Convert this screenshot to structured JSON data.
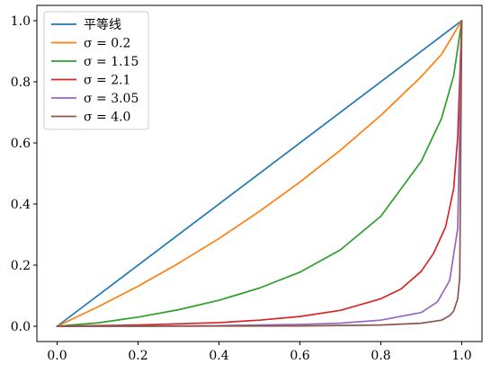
{
  "chart_data": {
    "type": "line",
    "title": "",
    "xlabel": "",
    "ylabel": "",
    "xlim": [
      -0.05,
      1.05
    ],
    "ylim": [
      -0.05,
      1.05
    ],
    "xticks": [
      "0.0",
      "0.2",
      "0.4",
      "0.6",
      "0.8",
      "1.0"
    ],
    "yticks": [
      "0.0",
      "0.2",
      "0.4",
      "0.6",
      "0.8",
      "1.0"
    ],
    "grid": false,
    "legend_position": "top-left",
    "series": [
      {
        "name": "平等线",
        "color": "#1f77b4",
        "x": [
          0,
          1
        ],
        "y": [
          0,
          1
        ]
      },
      {
        "name": "σ = 0.2",
        "color": "#ff7f0e",
        "x": [
          0,
          0.1,
          0.2,
          0.3,
          0.4,
          0.5,
          0.6,
          0.7,
          0.8,
          0.9,
          0.95,
          1.0
        ],
        "y": [
          0,
          0.063,
          0.131,
          0.206,
          0.287,
          0.376,
          0.472,
          0.576,
          0.69,
          0.817,
          0.89,
          1.0
        ]
      },
      {
        "name": "σ = 1.15",
        "color": "#2ca02c",
        "x": [
          0,
          0.1,
          0.2,
          0.3,
          0.4,
          0.5,
          0.6,
          0.7,
          0.8,
          0.9,
          0.95,
          0.98,
          1.0
        ],
        "y": [
          0,
          0.011,
          0.03,
          0.054,
          0.085,
          0.125,
          0.177,
          0.25,
          0.36,
          0.54,
          0.68,
          0.82,
          1.0
        ]
      },
      {
        "name": "σ = 2.1",
        "color": "#d62728",
        "x": [
          0,
          0.2,
          0.4,
          0.5,
          0.6,
          0.7,
          0.8,
          0.85,
          0.9,
          0.93,
          0.96,
          0.98,
          0.99,
          1.0
        ],
        "y": [
          0,
          0.004,
          0.012,
          0.02,
          0.032,
          0.052,
          0.09,
          0.122,
          0.18,
          0.238,
          0.325,
          0.45,
          0.62,
          1.0
        ]
      },
      {
        "name": "σ = 3.05",
        "color": "#9467bd",
        "x": [
          0,
          0.2,
          0.4,
          0.6,
          0.7,
          0.8,
          0.9,
          0.94,
          0.97,
          0.99,
          1.0
        ],
        "y": [
          0,
          0.0005,
          0.002,
          0.006,
          0.01,
          0.02,
          0.045,
          0.08,
          0.15,
          0.32,
          1.0
        ]
      },
      {
        "name": "σ = 4.0",
        "color": "#8c564b",
        "x": [
          0,
          0.2,
          0.4,
          0.6,
          0.8,
          0.9,
          0.95,
          0.97,
          0.98,
          0.99,
          0.995,
          1.0
        ],
        "y": [
          0,
          0.0001,
          0.0005,
          0.001,
          0.004,
          0.01,
          0.02,
          0.035,
          0.05,
          0.09,
          0.16,
          1.0
        ]
      }
    ]
  }
}
